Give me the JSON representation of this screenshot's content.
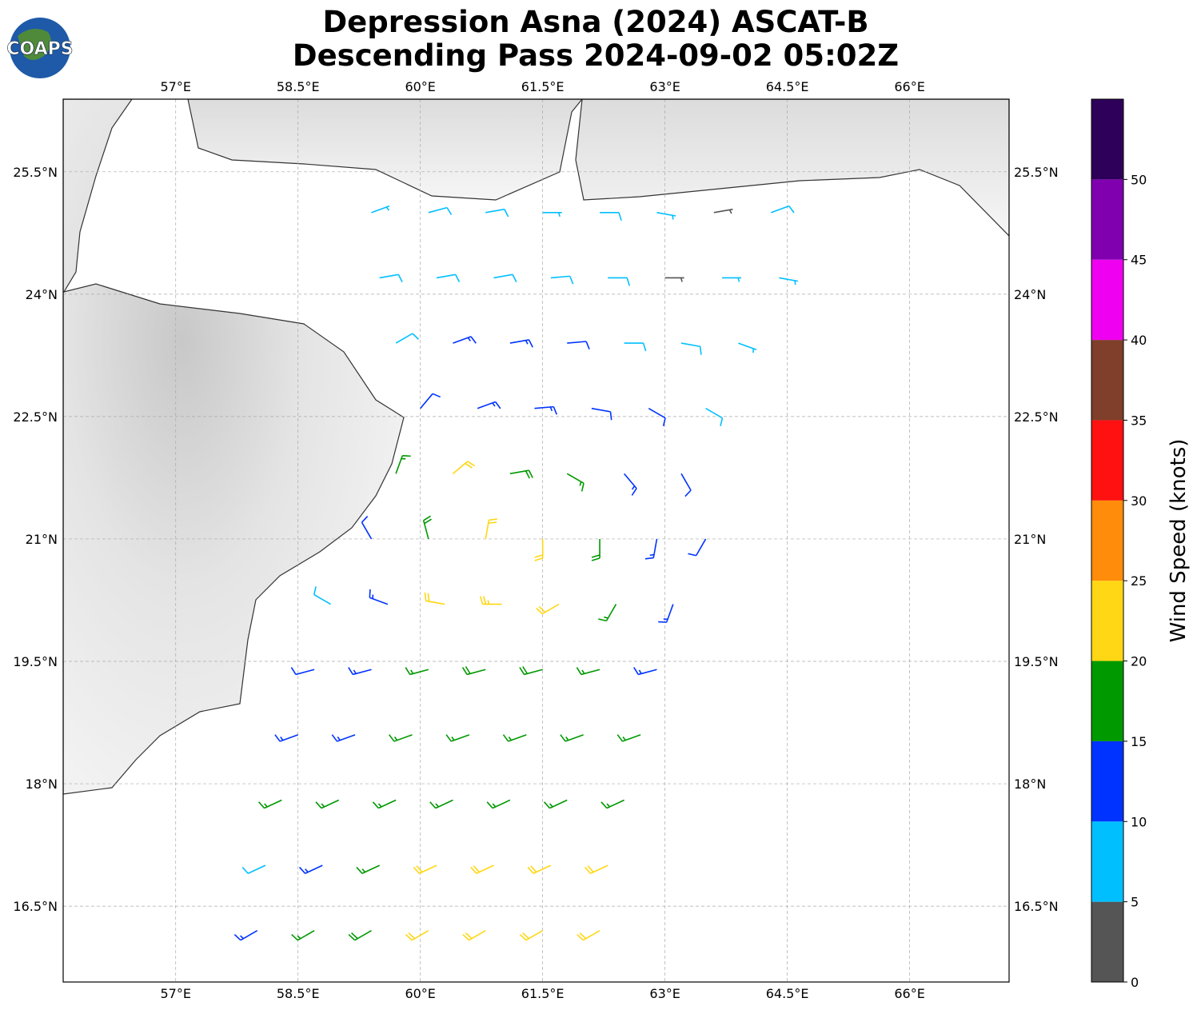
{
  "logo": "COAPS",
  "chart_data": {
    "type": "wind-barbs",
    "title": "Depression Asna (2024) ASCAT-B",
    "subtitle": "Descending Pass 2024-09-02 05:02Z",
    "xlim": [
      55.62,
      67.22
    ],
    "ylim": [
      15.57,
      26.39
    ],
    "xticks": [
      {
        "value": 57,
        "label": "57°E"
      },
      {
        "value": 58.5,
        "label": "58.5°E"
      },
      {
        "value": 60,
        "label": "60°E"
      },
      {
        "value": 61.5,
        "label": "61.5°E"
      },
      {
        "value": 63,
        "label": "63°E"
      },
      {
        "value": 64.5,
        "label": "64.5°E"
      },
      {
        "value": 66,
        "label": "66°E"
      }
    ],
    "yticks": [
      {
        "value": 16.5,
        "label": "16.5°N"
      },
      {
        "value": 18,
        "label": "18°N"
      },
      {
        "value": 19.5,
        "label": "19.5°N"
      },
      {
        "value": 21,
        "label": "21°N"
      },
      {
        "value": 22.5,
        "label": "22.5°N"
      },
      {
        "value": 24,
        "label": "24°N"
      },
      {
        "value": 25.5,
        "label": "25.5°N"
      }
    ],
    "grid": true,
    "colorbar": {
      "label": "Wind Speed (knots)",
      "lim": [
        0,
        55
      ],
      "ticks": [
        0,
        5,
        10,
        15,
        20,
        25,
        30,
        35,
        40,
        45,
        50
      ],
      "bounds": [
        0,
        5,
        10,
        15,
        20,
        25,
        30,
        35,
        40,
        45,
        50,
        55
      ],
      "colors": [
        "#555555",
        "#00bfff",
        "#0033ff",
        "#009900",
        "#ffd714",
        "#ff8c0a",
        "#ff1111",
        "#7f3f2a",
        "#f000f0",
        "#8000b0",
        "#2e005a"
      ]
    },
    "barbs": [
      {
        "lon": 58.0,
        "lat": 16.2,
        "speed": 14,
        "dir": 240
      },
      {
        "lon": 58.7,
        "lat": 16.2,
        "speed": 16,
        "dir": 240
      },
      {
        "lon": 59.4,
        "lat": 16.2,
        "speed": 19,
        "dir": 240
      },
      {
        "lon": 60.1,
        "lat": 16.2,
        "speed": 21,
        "dir": 240
      },
      {
        "lon": 60.8,
        "lat": 16.2,
        "speed": 22,
        "dir": 240
      },
      {
        "lon": 61.5,
        "lat": 16.2,
        "speed": 22,
        "dir": 240
      },
      {
        "lon": 62.2,
        "lat": 16.2,
        "speed": 21,
        "dir": 240
      },
      {
        "lon": 58.1,
        "lat": 17.0,
        "speed": 9,
        "dir": 245
      },
      {
        "lon": 58.8,
        "lat": 17.0,
        "speed": 13,
        "dir": 245
      },
      {
        "lon": 59.5,
        "lat": 17.0,
        "speed": 17,
        "dir": 245
      },
      {
        "lon": 60.2,
        "lat": 17.0,
        "speed": 21,
        "dir": 245
      },
      {
        "lon": 60.9,
        "lat": 17.0,
        "speed": 22,
        "dir": 245
      },
      {
        "lon": 61.6,
        "lat": 17.0,
        "speed": 22,
        "dir": 245
      },
      {
        "lon": 62.3,
        "lat": 17.0,
        "speed": 22,
        "dir": 245
      },
      {
        "lon": 58.3,
        "lat": 17.8,
        "speed": 15,
        "dir": 245
      },
      {
        "lon": 59.0,
        "lat": 17.8,
        "speed": 16,
        "dir": 245
      },
      {
        "lon": 59.7,
        "lat": 17.8,
        "speed": 16,
        "dir": 245
      },
      {
        "lon": 60.4,
        "lat": 17.8,
        "speed": 17,
        "dir": 245
      },
      {
        "lon": 61.1,
        "lat": 17.8,
        "speed": 17,
        "dir": 245
      },
      {
        "lon": 61.8,
        "lat": 17.8,
        "speed": 17,
        "dir": 245
      },
      {
        "lon": 62.5,
        "lat": 17.8,
        "speed": 17,
        "dir": 245
      },
      {
        "lon": 58.5,
        "lat": 18.6,
        "speed": 13,
        "dir": 250
      },
      {
        "lon": 59.2,
        "lat": 18.6,
        "speed": 13,
        "dir": 250
      },
      {
        "lon": 59.9,
        "lat": 18.6,
        "speed": 16,
        "dir": 250
      },
      {
        "lon": 60.6,
        "lat": 18.6,
        "speed": 17,
        "dir": 250
      },
      {
        "lon": 61.3,
        "lat": 18.6,
        "speed": 17,
        "dir": 250
      },
      {
        "lon": 62.0,
        "lat": 18.6,
        "speed": 17,
        "dir": 250
      },
      {
        "lon": 62.7,
        "lat": 18.6,
        "speed": 16,
        "dir": 250
      },
      {
        "lon": 58.7,
        "lat": 19.4,
        "speed": 12,
        "dir": 255
      },
      {
        "lon": 59.4,
        "lat": 19.4,
        "speed": 13,
        "dir": 255
      },
      {
        "lon": 60.1,
        "lat": 19.4,
        "speed": 16,
        "dir": 255
      },
      {
        "lon": 60.8,
        "lat": 19.4,
        "speed": 19,
        "dir": 255
      },
      {
        "lon": 61.5,
        "lat": 19.4,
        "speed": 18,
        "dir": 255
      },
      {
        "lon": 62.2,
        "lat": 19.4,
        "speed": 17,
        "dir": 255
      },
      {
        "lon": 62.9,
        "lat": 19.4,
        "speed": 14,
        "dir": 255
      },
      {
        "lon": 58.9,
        "lat": 20.2,
        "speed": 9,
        "dir": 300
      },
      {
        "lon": 59.6,
        "lat": 20.2,
        "speed": 14,
        "dir": 290
      },
      {
        "lon": 60.3,
        "lat": 20.2,
        "speed": 20,
        "dir": 280
      },
      {
        "lon": 61.0,
        "lat": 20.2,
        "speed": 23,
        "dir": 270
      },
      {
        "lon": 61.7,
        "lat": 20.2,
        "speed": 22,
        "dir": 240
      },
      {
        "lon": 62.4,
        "lat": 20.2,
        "speed": 17,
        "dir": 210
      },
      {
        "lon": 63.1,
        "lat": 20.2,
        "speed": 13,
        "dir": 200
      },
      {
        "lon": 59.4,
        "lat": 21.0,
        "speed": 10,
        "dir": 330
      },
      {
        "lon": 60.1,
        "lat": 21.0,
        "speed": 18,
        "dir": 345
      },
      {
        "lon": 60.8,
        "lat": 21.0,
        "speed": 21,
        "dir": 10
      },
      {
        "lon": 61.5,
        "lat": 21.0,
        "speed": 22,
        "dir": 180
      },
      {
        "lon": 62.2,
        "lat": 21.0,
        "speed": 18,
        "dir": 180
      },
      {
        "lon": 62.9,
        "lat": 21.0,
        "speed": 13,
        "dir": 190
      },
      {
        "lon": 63.5,
        "lat": 21.0,
        "speed": 12,
        "dir": 210
      },
      {
        "lon": 59.7,
        "lat": 21.8,
        "speed": 16,
        "dir": 20
      },
      {
        "lon": 60.4,
        "lat": 21.8,
        "speed": 20,
        "dir": 50
      },
      {
        "lon": 61.1,
        "lat": 21.8,
        "speed": 19,
        "dir": 80
      },
      {
        "lon": 61.8,
        "lat": 21.8,
        "speed": 16,
        "dir": 120
      },
      {
        "lon": 62.5,
        "lat": 21.8,
        "speed": 13,
        "dir": 140
      },
      {
        "lon": 63.2,
        "lat": 21.8,
        "speed": 10,
        "dir": 150
      },
      {
        "lon": 60.0,
        "lat": 22.6,
        "speed": 12,
        "dir": 40
      },
      {
        "lon": 60.7,
        "lat": 22.6,
        "speed": 14,
        "dir": 70
      },
      {
        "lon": 61.4,
        "lat": 22.6,
        "speed": 13,
        "dir": 85
      },
      {
        "lon": 62.1,
        "lat": 22.6,
        "speed": 12,
        "dir": 100
      },
      {
        "lon": 62.8,
        "lat": 22.6,
        "speed": 11,
        "dir": 120
      },
      {
        "lon": 63.5,
        "lat": 22.6,
        "speed": 8,
        "dir": 120
      },
      {
        "lon": 59.7,
        "lat": 23.4,
        "speed": 9,
        "dir": 60
      },
      {
        "lon": 60.4,
        "lat": 23.4,
        "speed": 13,
        "dir": 70
      },
      {
        "lon": 61.1,
        "lat": 23.4,
        "speed": 13,
        "dir": 80
      },
      {
        "lon": 61.8,
        "lat": 23.4,
        "speed": 12,
        "dir": 85
      },
      {
        "lon": 62.5,
        "lat": 23.4,
        "speed": 9,
        "dir": 90
      },
      {
        "lon": 63.2,
        "lat": 23.4,
        "speed": 8,
        "dir": 100
      },
      {
        "lon": 63.9,
        "lat": 23.4,
        "speed": 7,
        "dir": 110
      },
      {
        "lon": 59.5,
        "lat": 24.2,
        "speed": 8,
        "dir": 80
      },
      {
        "lon": 60.2,
        "lat": 24.2,
        "speed": 9,
        "dir": 80
      },
      {
        "lon": 60.9,
        "lat": 24.2,
        "speed": 9,
        "dir": 80
      },
      {
        "lon": 61.6,
        "lat": 24.2,
        "speed": 8,
        "dir": 85
      },
      {
        "lon": 62.3,
        "lat": 24.2,
        "speed": 8,
        "dir": 90
      },
      {
        "lon": 63.0,
        "lat": 24.2,
        "speed": 4,
        "dir": 90
      },
      {
        "lon": 63.7,
        "lat": 24.2,
        "speed": 5,
        "dir": 90
      },
      {
        "lon": 64.4,
        "lat": 24.2,
        "speed": 7,
        "dir": 100
      },
      {
        "lon": 59.4,
        "lat": 25.0,
        "speed": 7,
        "dir": 70
      },
      {
        "lon": 60.1,
        "lat": 25.0,
        "speed": 8,
        "dir": 75
      },
      {
        "lon": 60.8,
        "lat": 25.0,
        "speed": 8,
        "dir": 80
      },
      {
        "lon": 61.5,
        "lat": 25.0,
        "speed": 7,
        "dir": 90
      },
      {
        "lon": 62.2,
        "lat": 25.0,
        "speed": 8,
        "dir": 90
      },
      {
        "lon": 62.9,
        "lat": 25.0,
        "speed": 7,
        "dir": 100
      },
      {
        "lon": 63.6,
        "lat": 25.0,
        "speed": 4,
        "dir": 80
      },
      {
        "lon": 64.3,
        "lat": 25.0,
        "speed": 8,
        "dir": 70
      }
    ]
  }
}
